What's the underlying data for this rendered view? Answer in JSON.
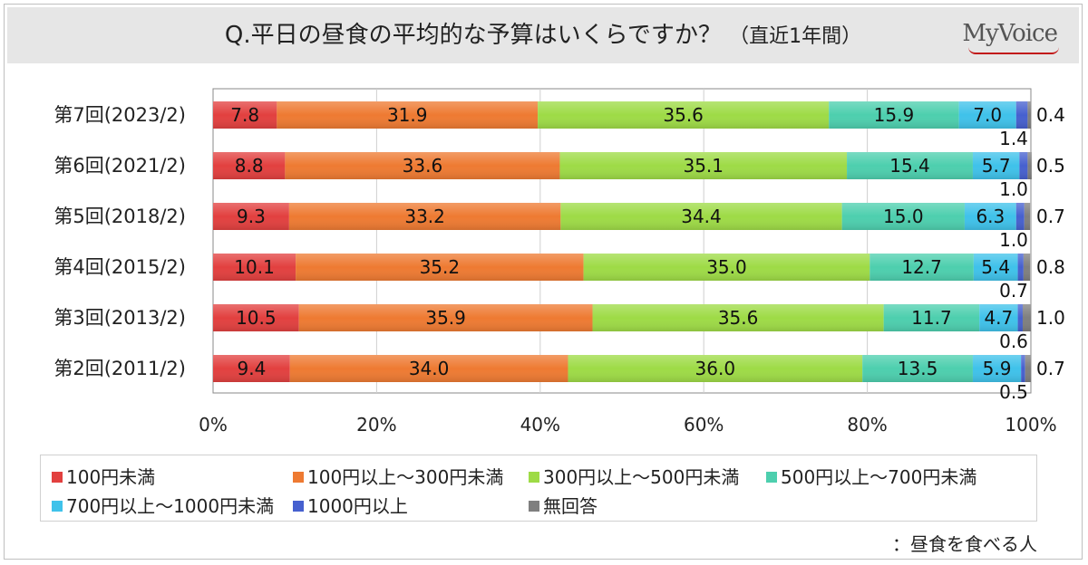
{
  "title": "Q.平日の昼食の平均的な予算はいくらですか？",
  "subtitle": "（直近1年間）",
  "logo": "MyVoice",
  "note": "：昼食を食べる人",
  "colors": [
    "#e2403f",
    "#ee7a32",
    "#9edb46",
    "#4dcfae",
    "#3fc2ea",
    "#4660cf",
    "#7f7f7f"
  ],
  "chart_data": {
    "type": "bar",
    "orientation": "horizontal",
    "stacked": true,
    "percent": true,
    "categories": [
      "第7回(2023/2)",
      "第6回(2021/2)",
      "第5回(2018/2)",
      "第4回(2015/2)",
      "第3回(2013/2)",
      "第2回(2011/2)"
    ],
    "series": [
      {
        "name": "100円未満",
        "values": [
          7.8,
          8.8,
          9.3,
          10.1,
          10.5,
          9.4
        ]
      },
      {
        "name": "100円以上～300円未満",
        "values": [
          31.9,
          33.6,
          33.2,
          35.2,
          35.9,
          34.0
        ]
      },
      {
        "name": "300円以上～500円未満",
        "values": [
          35.6,
          35.1,
          34.4,
          35.0,
          35.6,
          36.0
        ]
      },
      {
        "name": "500円以上～700円未満",
        "values": [
          15.9,
          15.4,
          15.0,
          12.7,
          11.7,
          13.5
        ]
      },
      {
        "name": "700円以上～1000円未満",
        "values": [
          7.0,
          5.7,
          6.3,
          5.4,
          4.7,
          5.9
        ]
      },
      {
        "name": "1000円以上",
        "values": [
          1.4,
          1.0,
          1.0,
          0.7,
          0.6,
          0.5
        ]
      },
      {
        "name": "無回答",
        "values": [
          0.4,
          0.5,
          0.7,
          0.8,
          1.0,
          0.7
        ]
      }
    ],
    "xticks": [
      "0%",
      "20%",
      "40%",
      "60%",
      "80%",
      "100%"
    ],
    "xlim": [
      0,
      100
    ],
    "grid": true,
    "legend_position": "bottom"
  }
}
